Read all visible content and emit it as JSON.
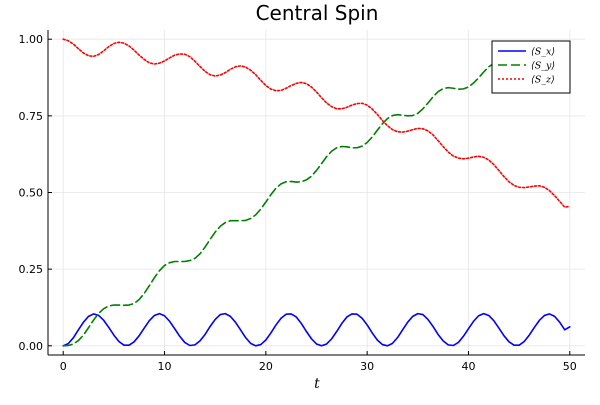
{
  "chart_data": {
    "type": "line",
    "title": "Central Spin",
    "xlabel": "t",
    "ylabel": "",
    "xlim": [
      -1.5,
      51.5
    ],
    "ylim": [
      -0.03,
      1.03
    ],
    "xticks": [
      0,
      10,
      20,
      30,
      40,
      50
    ],
    "xtick_labels": [
      "0",
      "10",
      "20",
      "30",
      "40",
      "50"
    ],
    "yticks": [
      0,
      0.25,
      0.5,
      0.75,
      1.0
    ],
    "ytick_labels": [
      "0.00",
      "0.25",
      "0.50",
      "0.75",
      "1.00"
    ],
    "grid": true,
    "legend_position": "top-right",
    "series": [
      {
        "name": "⟨S_x⟩",
        "color": "#0000ff",
        "dash": "solid",
        "x": [
          0,
          0.5,
          1,
          1.5,
          2,
          2.5,
          3,
          3.5,
          4,
          4.5,
          5,
          5.5,
          6,
          6.5,
          7,
          7.5,
          8,
          8.5,
          9,
          9.5,
          10,
          10.5,
          11,
          11.5,
          12,
          12.5,
          13,
          13.5,
          14,
          14.5,
          15,
          15.5,
          16,
          16.5,
          17,
          17.5,
          18,
          18.5,
          19,
          19.5,
          20,
          20.5,
          21,
          21.5,
          22,
          22.5,
          23,
          23.5,
          24,
          24.5,
          25,
          25.5,
          26,
          26.5,
          27,
          27.5,
          28,
          28.5,
          29,
          29.5,
          30,
          30.5,
          31,
          31.5,
          32,
          32.5,
          33,
          33.5,
          34,
          34.5,
          35,
          35.5,
          36,
          36.5,
          37,
          37.5,
          38,
          38.5,
          39,
          39.5,
          40,
          40.5,
          41,
          41.5,
          42,
          42.5,
          43,
          43.5,
          44,
          44.5,
          45,
          45.5,
          46,
          46.5,
          47,
          47.5,
          48,
          48.5,
          49,
          49.5,
          50
        ],
        "y": [
          0.0,
          0.007,
          0.026,
          0.052,
          0.077,
          0.096,
          0.104,
          0.099,
          0.083,
          0.06,
          0.035,
          0.014,
          0.002,
          0.002,
          0.013,
          0.033,
          0.058,
          0.082,
          0.099,
          0.105,
          0.098,
          0.08,
          0.056,
          0.031,
          0.011,
          0.001,
          0.003,
          0.016,
          0.037,
          0.063,
          0.086,
          0.102,
          0.105,
          0.096,
          0.077,
          0.052,
          0.027,
          0.008,
          0.0,
          0.004,
          0.019,
          0.042,
          0.068,
          0.09,
          0.103,
          0.104,
          0.094,
          0.073,
          0.047,
          0.023,
          0.006,
          0.0,
          0.006,
          0.023,
          0.047,
          0.073,
          0.094,
          0.104,
          0.103,
          0.09,
          0.068,
          0.042,
          0.019,
          0.004,
          0.0,
          0.008,
          0.027,
          0.052,
          0.077,
          0.096,
          0.105,
          0.102,
          0.086,
          0.063,
          0.037,
          0.016,
          0.003,
          0.001,
          0.011,
          0.031,
          0.056,
          0.08,
          0.098,
          0.105,
          0.099,
          0.082,
          0.058,
          0.033,
          0.013,
          0.002,
          0.002,
          0.014,
          0.035,
          0.06,
          0.083,
          0.099,
          0.104,
          0.096,
          0.077,
          0.052,
          0.062
        ]
      },
      {
        "name": "⟨S_y⟩",
        "color": "#008000",
        "dash": "dashed",
        "x": [
          0,
          0.5,
          1,
          1.5,
          2,
          2.5,
          3,
          3.5,
          4,
          4.5,
          5,
          5.5,
          6,
          6.5,
          7,
          7.5,
          8,
          8.5,
          9,
          9.5,
          10,
          10.5,
          11,
          11.5,
          12,
          12.5,
          13,
          13.5,
          14,
          14.5,
          15,
          15.5,
          16,
          16.5,
          17,
          17.5,
          18,
          18.5,
          19,
          19.5,
          20,
          20.5,
          21,
          21.5,
          22,
          22.5,
          23,
          23.5,
          24,
          24.5,
          25,
          25.5,
          26,
          26.5,
          27,
          27.5,
          28,
          28.5,
          29,
          29.5,
          30,
          30.5,
          31,
          31.5,
          32,
          32.5,
          33,
          33.5,
          34,
          34.5,
          35,
          35.5,
          36,
          36.5,
          37,
          37.5,
          38,
          38.5,
          39,
          39.5,
          40,
          40.5,
          41,
          41.5,
          42,
          42.5,
          43,
          43.5,
          44,
          44.5,
          45,
          45.5,
          46,
          46.5,
          47,
          47.5,
          48,
          48.5,
          49,
          49.5,
          50
        ],
        "y": [
          0.0,
          0.001,
          0.006,
          0.017,
          0.035,
          0.059,
          0.084,
          0.106,
          0.121,
          0.13,
          0.133,
          0.133,
          0.132,
          0.133,
          0.138,
          0.151,
          0.171,
          0.196,
          0.222,
          0.245,
          0.262,
          0.271,
          0.275,
          0.275,
          0.275,
          0.278,
          0.285,
          0.3,
          0.322,
          0.347,
          0.371,
          0.39,
          0.402,
          0.408,
          0.408,
          0.408,
          0.409,
          0.415,
          0.427,
          0.446,
          0.469,
          0.493,
          0.514,
          0.528,
          0.535,
          0.536,
          0.534,
          0.535,
          0.541,
          0.553,
          0.572,
          0.594,
          0.617,
          0.635,
          0.646,
          0.65,
          0.649,
          0.646,
          0.646,
          0.651,
          0.663,
          0.681,
          0.703,
          0.724,
          0.741,
          0.751,
          0.754,
          0.752,
          0.75,
          0.751,
          0.758,
          0.773,
          0.792,
          0.812,
          0.829,
          0.839,
          0.842,
          0.84,
          0.837,
          0.838,
          0.844,
          0.857,
          0.874,
          0.893,
          0.91,
          0.921,
          0.925,
          0.923,
          0.92,
          0.919,
          0.923,
          0.934,
          0.949,
          0.967,
          0.982,
          0.991,
          0.993,
          0.99,
          0.985,
          0.981,
          0.85
        ]
      },
      {
        "name": "⟨S_z⟩",
        "color": "#ff0000",
        "dash": "dotted",
        "x": [
          0,
          0.5,
          1,
          1.5,
          2,
          2.5,
          3,
          3.5,
          4,
          4.5,
          5,
          5.5,
          6,
          6.5,
          7,
          7.5,
          8,
          8.5,
          9,
          9.5,
          10,
          10.5,
          11,
          11.5,
          12,
          12.5,
          13,
          13.5,
          14,
          14.5,
          15,
          15.5,
          16,
          16.5,
          17,
          17.5,
          18,
          18.5,
          19,
          19.5,
          20,
          20.5,
          21,
          21.5,
          22,
          22.5,
          23,
          23.5,
          24,
          24.5,
          25,
          25.5,
          26,
          26.5,
          27,
          27.5,
          28,
          28.5,
          29,
          29.5,
          30,
          30.5,
          31,
          31.5,
          32,
          32.5,
          33,
          33.5,
          34,
          34.5,
          35,
          35.5,
          36,
          36.5,
          37,
          37.5,
          38,
          38.5,
          39,
          39.5,
          40,
          40.5,
          41,
          41.5,
          42,
          42.5,
          43,
          43.5,
          44,
          44.5,
          45,
          45.5,
          46,
          46.5,
          47,
          47.5,
          48,
          48.5,
          49,
          49.5,
          50
        ],
        "y": [
          1.0,
          0.995,
          0.984,
          0.969,
          0.955,
          0.946,
          0.944,
          0.95,
          0.962,
          0.976,
          0.986,
          0.99,
          0.987,
          0.978,
          0.964,
          0.948,
          0.934,
          0.923,
          0.919,
          0.922,
          0.929,
          0.939,
          0.948,
          0.952,
          0.951,
          0.943,
          0.928,
          0.911,
          0.895,
          0.884,
          0.88,
          0.883,
          0.891,
          0.902,
          0.91,
          0.913,
          0.909,
          0.899,
          0.884,
          0.866,
          0.849,
          0.837,
          0.832,
          0.833,
          0.84,
          0.849,
          0.856,
          0.859,
          0.855,
          0.844,
          0.828,
          0.809,
          0.792,
          0.78,
          0.773,
          0.773,
          0.778,
          0.785,
          0.79,
          0.791,
          0.785,
          0.772,
          0.755,
          0.735,
          0.718,
          0.705,
          0.698,
          0.697,
          0.7,
          0.705,
          0.709,
          0.708,
          0.701,
          0.688,
          0.669,
          0.65,
          0.632,
          0.619,
          0.612,
          0.61,
          0.612,
          0.616,
          0.618,
          0.615,
          0.606,
          0.591,
          0.572,
          0.552,
          0.535,
          0.523,
          0.517,
          0.516,
          0.518,
          0.521,
          0.522,
          0.517,
          0.506,
          0.49,
          0.471,
          0.452,
          0.455
        ]
      }
    ]
  }
}
